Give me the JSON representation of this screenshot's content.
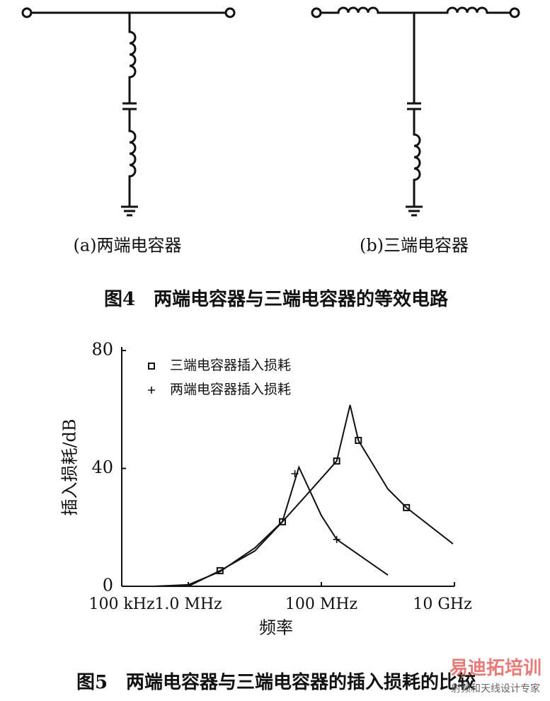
{
  "figure4": {
    "label_a": "(a)两端电容器",
    "label_b": "(b)三端电容器",
    "caption": "图4　两端电容器与三端电容器的等效电路"
  },
  "chart_data": {
    "type": "scatter",
    "title": "图5　两端电容器与三端电容器的插入损耗的比较",
    "xlabel": "频率",
    "ylabel": "插入损耗/dB",
    "xscale": "log",
    "grid": false,
    "legend": "upper left",
    "xlim": [
      100000,
      10000000000
    ],
    "ylim": [
      0,
      80
    ],
    "xticks": [
      {
        "value": 100000,
        "label": "100 kHz"
      },
      {
        "value": 1000000,
        "label": "1.0 MHz"
      },
      {
        "value": 100000000,
        "label": "100 MHz"
      },
      {
        "value": 10000000000,
        "label": "10 GHz"
      }
    ],
    "yticks": [
      0,
      40,
      80
    ],
    "series": [
      {
        "name": "三端电容器插入损耗",
        "color": "#111111",
        "marker": "square",
        "x": [
          3000000,
          26000000,
          170000000,
          360000000,
          1900000000
        ],
        "values": [
          5.3,
          21.9,
          42.5,
          49.5,
          26.7
        ],
        "curve": {
          "x": [
            1000000,
            3000000,
            10000000,
            26000000,
            60000000,
            170000000,
            270000000,
            360000000,
            1000000000,
            1900000000,
            9500000000
          ],
          "values": [
            0,
            5.3,
            12,
            21.9,
            31,
            42.5,
            61.5,
            49.5,
            33,
            26.7,
            14.4
          ]
        }
      },
      {
        "name": "两端电容器插入损耗",
        "color": "#111111",
        "marker": "plus",
        "x": [
          40000000,
          170000000
        ],
        "values": [
          38.2,
          15.9
        ],
        "curve": {
          "x": [
            300000,
            1000000,
            3000000,
            10000000,
            26000000,
            46000000,
            100000000,
            170000000,
            1000000000
          ],
          "values": [
            0,
            0.5,
            5,
            13,
            22,
            40.4,
            24,
            15.9,
            3.8
          ]
        }
      }
    ]
  },
  "watermark": {
    "logo": "易迪拓培训",
    "text": "射频和天线设计专家"
  }
}
